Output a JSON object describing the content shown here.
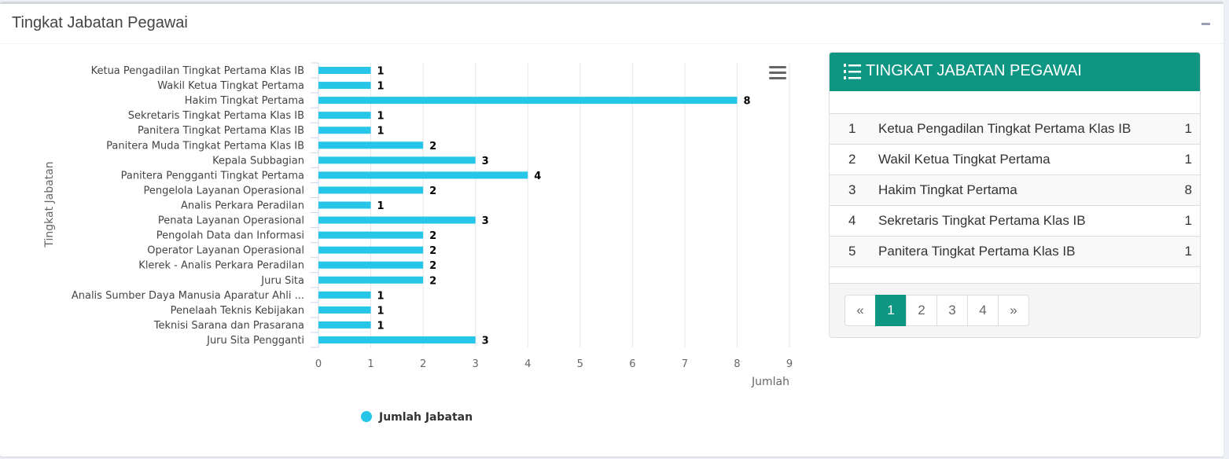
{
  "box": {
    "title": "Tingkat Jabatan Pegawai"
  },
  "chart_data": {
    "type": "bar",
    "orientation": "horizontal",
    "categories": [
      "Ketua Pengadilan Tingkat Pertama Klas IB",
      "Wakil Ketua Tingkat Pertama",
      "Hakim Tingkat Pertama",
      "Sekretaris Tingkat Pertama Klas IB",
      "Panitera Tingkat Pertama Klas IB",
      "Panitera Muda Tingkat Pertama Klas IB",
      "Kepala Subbagian",
      "Panitera Pengganti Tingkat Pertama",
      "Pengelola Layanan Operasional",
      "Analis Perkara Peradilan",
      "Penata Layanan Operasional",
      "Pengolah Data dan Informasi",
      "Operator Layanan Operasional",
      "Klerek - Analis Perkara Peradilan",
      "Juru Sita",
      "Analis Sumber Daya Manusia Aparatur Ahli ...",
      "Penelaah Teknis Kebijakan",
      "Teknisi Sarana dan Prasarana",
      "Juru Sita Pengganti"
    ],
    "series": [
      {
        "name": "Jumlah Jabatan",
        "values": [
          1,
          1,
          8,
          1,
          1,
          2,
          3,
          4,
          2,
          1,
          3,
          2,
          2,
          2,
          2,
          1,
          1,
          1,
          3
        ],
        "color": "#26c6e8"
      }
    ],
    "xlabel": "Jumlah",
    "ylabel": "Tingkat Jabatan",
    "xlim": [
      0,
      9
    ],
    "xticks": [
      0,
      1,
      2,
      3,
      4,
      5,
      6,
      7,
      8,
      9
    ],
    "grid": true,
    "data_labels": true,
    "legend": "bottom"
  },
  "chart_menu": {
    "icon": "hamburger-icon"
  },
  "table_panel": {
    "title": "TINGKAT JABATAN PEGAWAI",
    "icon": "list-ol-icon",
    "accent_color": "#0f9683",
    "rows": [
      {
        "no": "1",
        "name": "Ketua Pengadilan Tingkat Pertama Klas IB",
        "count": "1"
      },
      {
        "no": "2",
        "name": "Wakil Ketua Tingkat Pertama",
        "count": "1"
      },
      {
        "no": "3",
        "name": "Hakim Tingkat Pertama",
        "count": "8"
      },
      {
        "no": "4",
        "name": "Sekretaris Tingkat Pertama Klas IB",
        "count": "1"
      },
      {
        "no": "5",
        "name": "Panitera Tingkat Pertama Klas IB",
        "count": "1"
      }
    ],
    "pagination": {
      "prev": "«",
      "pages": [
        "1",
        "2",
        "3",
        "4"
      ],
      "next": "»",
      "active": "1"
    }
  }
}
